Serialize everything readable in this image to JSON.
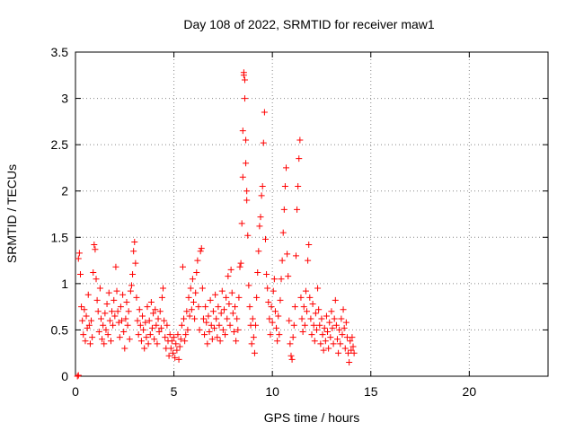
{
  "chart_data": {
    "type": "scatter",
    "title": "Day 108 of 2022, SRMTID for receiver maw1",
    "xlabel": "GPS time / hours",
    "ylabel": "SRMTID / TECUs",
    "xlim": [
      0,
      24
    ],
    "ylim": [
      0,
      3.5
    ],
    "xticks": [
      0,
      5,
      10,
      15,
      20
    ],
    "xtick_labels": [
      "0",
      "5",
      "10",
      "15",
      "20"
    ],
    "yticks": [
      0,
      0.5,
      1,
      1.5,
      2,
      2.5,
      3,
      3.5
    ],
    "ytick_labels": [
      "0",
      "0.5",
      "1",
      "1.5",
      "2",
      "2.5",
      "3",
      "3.5"
    ],
    "grid": true,
    "marker": "plus",
    "color": "#ff0000",
    "series": [
      {
        "name": "maw1",
        "points": [
          [
            0.1,
            0.0
          ],
          [
            0.15,
            0.01
          ],
          [
            0.15,
            1.27
          ],
          [
            0.2,
            1.33
          ],
          [
            0.25,
            1.1
          ],
          [
            0.3,
            0.75
          ],
          [
            0.35,
            0.6
          ],
          [
            0.4,
            0.45
          ],
          [
            0.45,
            0.72
          ],
          [
            0.5,
            0.38
          ],
          [
            0.55,
            0.65
          ],
          [
            0.6,
            0.52
          ],
          [
            0.65,
            0.88
          ],
          [
            0.7,
            0.55
          ],
          [
            0.75,
            0.35
          ],
          [
            0.8,
            0.6
          ],
          [
            0.85,
            0.42
          ],
          [
            0.9,
            1.12
          ],
          [
            0.95,
            1.42
          ],
          [
            1.0,
            1.37
          ],
          [
            1.05,
            1.05
          ],
          [
            1.1,
            0.82
          ],
          [
            1.15,
            0.7
          ],
          [
            1.2,
            0.48
          ],
          [
            1.25,
            0.95
          ],
          [
            1.3,
            0.62
          ],
          [
            1.35,
            0.4
          ],
          [
            1.4,
            0.55
          ],
          [
            1.45,
            0.35
          ],
          [
            1.5,
            0.68
          ],
          [
            1.55,
            0.5
          ],
          [
            1.6,
            0.78
          ],
          [
            1.65,
            0.45
          ],
          [
            1.7,
            0.9
          ],
          [
            1.75,
            0.6
          ],
          [
            1.8,
            0.38
          ],
          [
            1.85,
            0.7
          ],
          [
            1.9,
            0.55
          ],
          [
            1.95,
            0.82
          ],
          [
            2.0,
            0.65
          ],
          [
            2.05,
            1.18
          ],
          [
            2.1,
            0.92
          ],
          [
            2.15,
            0.7
          ],
          [
            2.2,
            0.58
          ],
          [
            2.25,
            0.42
          ],
          [
            2.3,
            0.75
          ],
          [
            2.35,
            0.6
          ],
          [
            2.4,
            0.88
          ],
          [
            2.45,
            0.48
          ],
          [
            2.5,
            0.3
          ],
          [
            2.55,
            0.62
          ],
          [
            2.6,
            0.8
          ],
          [
            2.65,
            0.55
          ],
          [
            2.7,
            0.7
          ],
          [
            2.75,
            0.4
          ],
          [
            2.8,
            0.92
          ],
          [
            2.85,
            0.98
          ],
          [
            2.9,
            1.1
          ],
          [
            2.95,
            1.35
          ],
          [
            3.0,
            1.45
          ],
          [
            3.05,
            1.22
          ],
          [
            3.1,
            0.85
          ],
          [
            3.15,
            0.6
          ],
          [
            3.2,
            0.45
          ],
          [
            3.25,
            0.72
          ],
          [
            3.3,
            0.55
          ],
          [
            3.35,
            0.38
          ],
          [
            3.4,
            0.65
          ],
          [
            3.45,
            0.5
          ],
          [
            3.5,
            0.3
          ],
          [
            3.55,
            0.58
          ],
          [
            3.6,
            0.42
          ],
          [
            3.65,
            0.75
          ],
          [
            3.7,
            0.35
          ],
          [
            3.75,
            0.6
          ],
          [
            3.8,
            0.45
          ],
          [
            3.85,
            0.8
          ],
          [
            3.9,
            0.52
          ],
          [
            3.95,
            0.68
          ],
          [
            4.0,
            0.4
          ],
          [
            4.05,
            0.72
          ],
          [
            4.1,
            0.55
          ],
          [
            4.15,
            0.35
          ],
          [
            4.2,
            0.62
          ],
          [
            4.25,
            0.48
          ],
          [
            4.3,
            0.7
          ],
          [
            4.35,
            0.52
          ],
          [
            4.4,
            0.85
          ],
          [
            4.45,
            0.95
          ],
          [
            4.5,
            0.6
          ],
          [
            4.55,
            0.42
          ],
          [
            4.6,
            0.3
          ],
          [
            4.65,
            0.55
          ],
          [
            4.7,
            0.38
          ],
          [
            4.75,
            0.22
          ],
          [
            4.8,
            0.45
          ],
          [
            4.85,
            0.3
          ],
          [
            4.9,
            0.38
          ],
          [
            4.95,
            0.25
          ],
          [
            5.0,
            0.42
          ],
          [
            5.05,
            0.2
          ],
          [
            5.1,
            0.35
          ],
          [
            5.15,
            0.28
          ],
          [
            5.2,
            0.45
          ],
          [
            5.25,
            0.18
          ],
          [
            5.3,
            0.32
          ],
          [
            5.35,
            0.4
          ],
          [
            5.4,
            0.55
          ],
          [
            5.45,
            1.18
          ],
          [
            5.5,
            0.62
          ],
          [
            5.55,
            0.38
          ],
          [
            5.6,
            0.45
          ],
          [
            5.65,
            0.7
          ],
          [
            5.7,
            0.5
          ],
          [
            5.75,
            0.85
          ],
          [
            5.8,
            0.65
          ],
          [
            5.85,
            0.95
          ],
          [
            5.9,
            0.72
          ],
          [
            5.95,
            1.05
          ],
          [
            6.0,
            0.8
          ],
          [
            6.05,
            0.62
          ],
          [
            6.1,
            0.9
          ],
          [
            6.15,
            1.12
          ],
          [
            6.2,
            1.25
          ],
          [
            6.25,
            0.75
          ],
          [
            6.3,
            0.5
          ],
          [
            6.35,
            1.35
          ],
          [
            6.4,
            1.38
          ],
          [
            6.45,
            0.95
          ],
          [
            6.5,
            0.62
          ],
          [
            6.55,
            0.45
          ],
          [
            6.6,
            0.75
          ],
          [
            6.65,
            0.58
          ],
          [
            6.7,
            0.35
          ],
          [
            6.75,
            0.65
          ],
          [
            6.8,
            0.48
          ],
          [
            6.85,
            0.82
          ],
          [
            6.9,
            0.55
          ],
          [
            6.95,
            0.4
          ],
          [
            7.0,
            0.7
          ],
          [
            7.05,
            0.52
          ],
          [
            7.1,
            0.88
          ],
          [
            7.15,
            0.62
          ],
          [
            7.2,
            0.42
          ],
          [
            7.25,
            0.75
          ],
          [
            7.3,
            0.55
          ],
          [
            7.35,
            0.38
          ],
          [
            7.4,
            0.68
          ],
          [
            7.45,
            0.92
          ],
          [
            7.5,
            0.5
          ],
          [
            7.55,
            0.72
          ],
          [
            7.6,
            0.45
          ],
          [
            7.65,
            0.85
          ],
          [
            7.7,
            0.62
          ],
          [
            7.75,
            1.08
          ],
          [
            7.8,
            0.78
          ],
          [
            7.85,
            0.55
          ],
          [
            7.9,
            1.15
          ],
          [
            7.95,
            0.9
          ],
          [
            8.0,
            0.68
          ],
          [
            8.05,
            0.48
          ],
          [
            8.1,
            0.75
          ],
          [
            8.15,
            0.38
          ],
          [
            8.2,
            0.62
          ],
          [
            8.25,
            0.5
          ],
          [
            8.3,
            0.85
          ],
          [
            8.35,
            1.18
          ],
          [
            8.4,
            1.22
          ],
          [
            8.45,
            1.65
          ],
          [
            8.5,
            2.15
          ],
          [
            8.5,
            2.65
          ],
          [
            8.55,
            3.25
          ],
          [
            8.55,
            3.28
          ],
          [
            8.6,
            3.2
          ],
          [
            8.6,
            3.0
          ],
          [
            8.65,
            2.55
          ],
          [
            8.65,
            2.3
          ],
          [
            8.7,
            2.0
          ],
          [
            8.7,
            1.9
          ],
          [
            8.75,
            1.52
          ],
          [
            8.8,
            0.98
          ],
          [
            8.85,
            0.75
          ],
          [
            8.9,
            0.55
          ],
          [
            8.95,
            0.35
          ],
          [
            9.0,
            0.62
          ],
          [
            9.05,
            0.42
          ],
          [
            9.1,
            0.25
          ],
          [
            9.15,
            0.55
          ],
          [
            9.2,
            0.85
          ],
          [
            9.25,
            1.12
          ],
          [
            9.3,
            1.35
          ],
          [
            9.35,
            1.62
          ],
          [
            9.4,
            1.72
          ],
          [
            9.45,
            1.95
          ],
          [
            9.5,
            2.05
          ],
          [
            9.55,
            2.52
          ],
          [
            9.6,
            2.85
          ],
          [
            9.65,
            1.48
          ],
          [
            9.7,
            1.1
          ],
          [
            9.75,
            0.95
          ],
          [
            9.8,
            0.8
          ],
          [
            9.85,
            0.62
          ],
          [
            9.9,
            0.45
          ],
          [
            9.95,
            0.75
          ],
          [
            10.0,
            0.58
          ],
          [
            10.05,
            0.92
          ],
          [
            10.1,
            1.05
          ],
          [
            10.15,
            0.7
          ],
          [
            10.2,
            0.52
          ],
          [
            10.25,
            0.38
          ],
          [
            10.3,
            0.65
          ],
          [
            10.35,
            0.45
          ],
          [
            10.4,
            0.82
          ],
          [
            10.45,
            1.05
          ],
          [
            10.5,
            1.25
          ],
          [
            10.55,
            1.55
          ],
          [
            10.6,
            1.8
          ],
          [
            10.65,
            2.05
          ],
          [
            10.7,
            2.25
          ],
          [
            10.75,
            1.32
          ],
          [
            10.8,
            1.08
          ],
          [
            10.85,
            0.6
          ],
          [
            10.9,
            0.35
          ],
          [
            10.95,
            0.22
          ],
          [
            11.0,
            0.18
          ],
          [
            11.05,
            0.42
          ],
          [
            11.1,
            0.55
          ],
          [
            11.15,
            0.75
          ],
          [
            11.2,
            1.3
          ],
          [
            11.25,
            1.8
          ],
          [
            11.3,
            2.05
          ],
          [
            11.35,
            2.35
          ],
          [
            11.4,
            2.55
          ],
          [
            11.45,
            0.85
          ],
          [
            11.5,
            0.62
          ],
          [
            11.55,
            0.48
          ],
          [
            11.6,
            0.75
          ],
          [
            11.65,
            0.55
          ],
          [
            11.7,
            0.92
          ],
          [
            11.75,
            0.7
          ],
          [
            11.8,
            1.25
          ],
          [
            11.85,
            1.42
          ],
          [
            11.9,
            0.85
          ],
          [
            11.95,
            0.62
          ],
          [
            12.0,
            0.45
          ],
          [
            12.05,
            0.78
          ],
          [
            12.1,
            0.55
          ],
          [
            12.15,
            0.38
          ],
          [
            12.2,
            0.68
          ],
          [
            12.25,
            0.5
          ],
          [
            12.3,
            0.95
          ],
          [
            12.35,
            0.72
          ],
          [
            12.4,
            0.55
          ],
          [
            12.45,
            0.35
          ],
          [
            12.5,
            0.62
          ],
          [
            12.55,
            0.45
          ],
          [
            12.6,
            0.28
          ],
          [
            12.65,
            0.52
          ],
          [
            12.7,
            0.38
          ],
          [
            12.75,
            0.65
          ],
          [
            12.8,
            0.48
          ],
          [
            12.85,
            0.3
          ],
          [
            12.9,
            0.58
          ],
          [
            12.95,
            0.42
          ],
          [
            13.0,
            0.7
          ],
          [
            13.05,
            0.52
          ],
          [
            13.1,
            0.35
          ],
          [
            13.15,
            0.62
          ],
          [
            13.2,
            0.82
          ],
          [
            13.25,
            0.55
          ],
          [
            13.3,
            0.4
          ],
          [
            13.35,
            0.25
          ],
          [
            13.4,
            0.5
          ],
          [
            13.45,
            0.35
          ],
          [
            13.5,
            0.62
          ],
          [
            13.55,
            0.45
          ],
          [
            13.6,
            0.72
          ],
          [
            13.65,
            0.52
          ],
          [
            13.7,
            0.3
          ],
          [
            13.75,
            0.58
          ],
          [
            13.8,
            0.42
          ],
          [
            13.85,
            0.25
          ],
          [
            13.9,
            0.15
          ],
          [
            13.95,
            0.38
          ],
          [
            14.0,
            0.28
          ],
          [
            14.05,
            0.42
          ],
          [
            14.1,
            0.32
          ],
          [
            14.15,
            0.25
          ]
        ]
      }
    ]
  }
}
